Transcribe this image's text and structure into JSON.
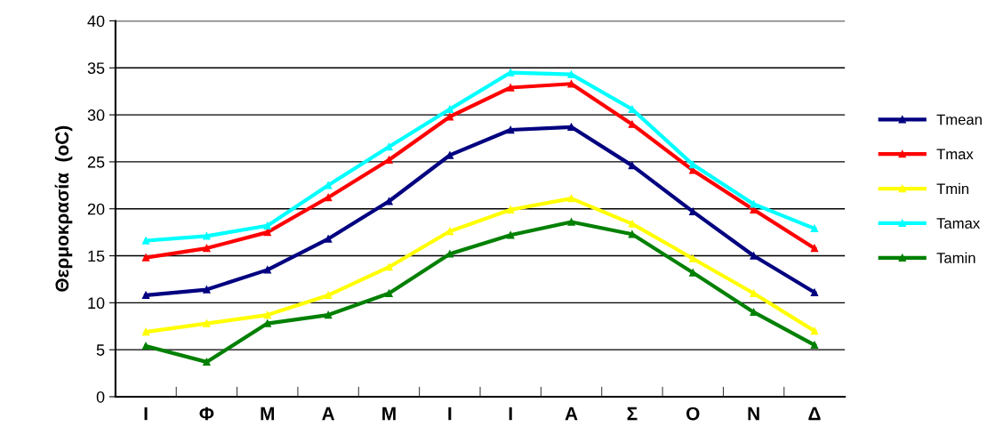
{
  "chart_data": {
    "type": "line",
    "ylabel": "Θερμοκρασία  (oC)",
    "categories": [
      "Ι",
      "Φ",
      "Μ",
      "Α",
      "Μ",
      "Ι",
      "Ι",
      "Α",
      "Σ",
      "Ο",
      "Ν",
      "Δ"
    ],
    "series": [
      {
        "name": "Tmean",
        "color": "#000080",
        "values": [
          10.8,
          11.4,
          13.5,
          16.8,
          20.8,
          25.7,
          28.4,
          28.7,
          24.6,
          19.7,
          15.0,
          11.1
        ]
      },
      {
        "name": "Tmax",
        "color": "#ff0000",
        "values": [
          14.8,
          15.8,
          17.5,
          21.2,
          25.2,
          29.8,
          32.9,
          33.3,
          29.0,
          24.1,
          19.9,
          15.8
        ]
      },
      {
        "name": "Tmin",
        "color": "#ffff00",
        "values": [
          6.9,
          7.8,
          8.7,
          10.8,
          13.8,
          17.6,
          19.9,
          21.1,
          18.4,
          14.7,
          11.0,
          7.0
        ]
      },
      {
        "name": "Tamax",
        "color": "#00ffff",
        "values": [
          16.6,
          17.1,
          18.2,
          22.5,
          26.6,
          30.6,
          34.5,
          34.3,
          30.6,
          24.7,
          20.5,
          17.9
        ]
      },
      {
        "name": "Tamin",
        "color": "#008000",
        "values": [
          5.4,
          3.7,
          7.8,
          8.7,
          11.0,
          15.2,
          17.2,
          18.6,
          17.3,
          13.2,
          9.0,
          5.5
        ]
      }
    ],
    "ylim": [
      0,
      40
    ],
    "yticks": [
      0,
      5,
      10,
      15,
      20,
      25,
      30,
      35,
      40
    ],
    "grid": "y",
    "legend": "right",
    "marker": "triangle",
    "line_style": "solid"
  }
}
